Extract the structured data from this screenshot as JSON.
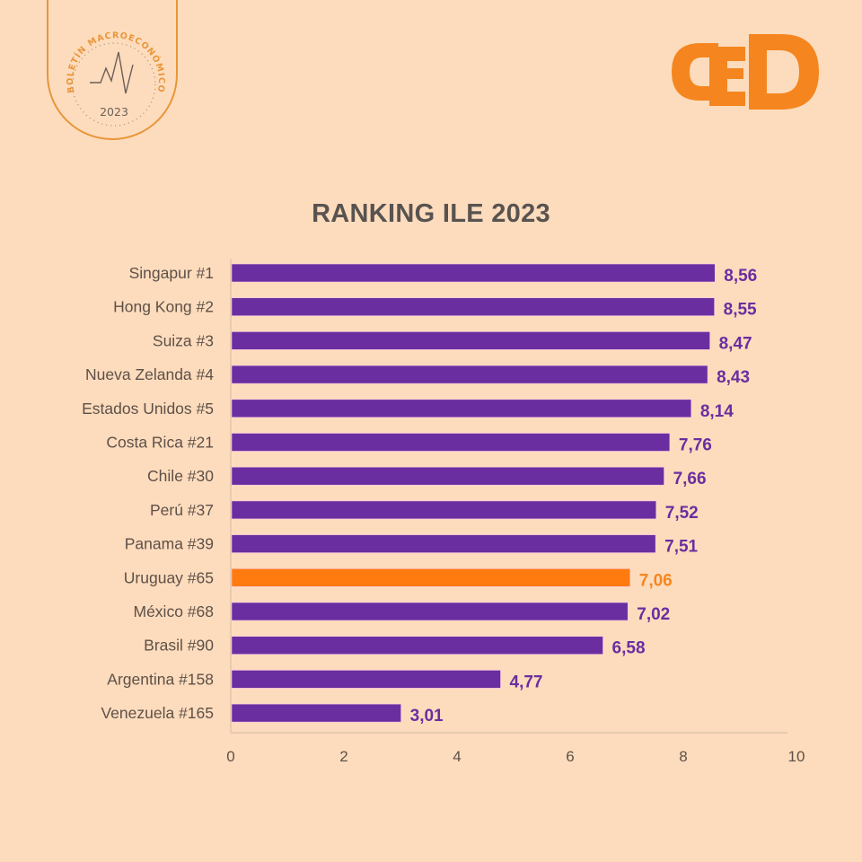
{
  "badge": {
    "arc_text": "BOLETÍN MACROECONÓMICO",
    "year": "2023",
    "icon": "pulse-line-icon"
  },
  "logo": {
    "text": "CED",
    "color": "#f5861f"
  },
  "colors": {
    "background": "#fddcbd",
    "bar_default": "#6a2ea0",
    "bar_highlight": "#ff7a0f",
    "label_default": "#6a2ea0",
    "label_highlight": "#f5861f",
    "category_text": "#5e5048",
    "axis_line": "#d8c0a8"
  },
  "chart_data": {
    "type": "bar",
    "orientation": "horizontal",
    "title": "RANKING ILE 2023",
    "xlabel": "",
    "ylabel": "",
    "xlim": [
      0,
      10
    ],
    "xticks": [
      0,
      2,
      4,
      6,
      8,
      10
    ],
    "xtick_labels": [
      "0",
      "2",
      "4",
      "6",
      "8",
      "10"
    ],
    "grid": false,
    "legend": "none",
    "categories": [
      "Singapur #1",
      "Hong Kong #2",
      "Suiza #3",
      "Nueva Zelanda #4",
      "Estados Unidos #5",
      "Costa Rica #21",
      "Chile #30",
      "Perú #37",
      "Panama #39",
      "Uruguay #65",
      "México #68",
      "Brasil #90",
      "Argentina #158",
      "Venezuela #165"
    ],
    "values": [
      8.56,
      8.55,
      8.47,
      8.43,
      8.14,
      7.76,
      7.66,
      7.52,
      7.51,
      7.06,
      7.02,
      6.58,
      4.77,
      3.01
    ],
    "data_labels": [
      "8,56",
      "8,55",
      "8,47",
      "8,43",
      "8,14",
      "7,76",
      "7,66",
      "7,52",
      "7,51",
      "7,06",
      "7,02",
      "6,58",
      "4,77",
      "3,01"
    ],
    "highlight": "Uruguay #65"
  }
}
